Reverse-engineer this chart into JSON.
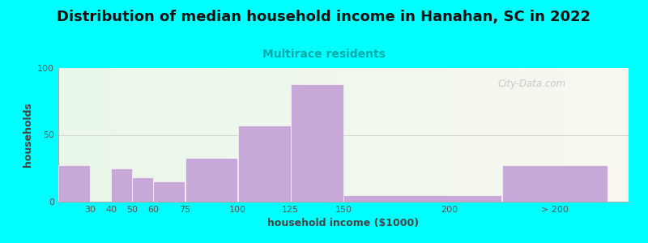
{
  "title": "Distribution of median household income in Hanahan, SC in 2022",
  "subtitle": "Multirace residents",
  "xlabel": "household income ($1000)",
  "ylabel": "households",
  "background_outer": "#00FFFF",
  "bar_color": "#C8A8D8",
  "values": [
    27,
    0,
    25,
    18,
    15,
    33,
    57,
    88,
    5,
    27
  ],
  "bar_lefts": [
    15,
    30,
    40,
    50,
    60,
    75,
    100,
    125,
    150,
    225
  ],
  "bar_widths": [
    15,
    10,
    10,
    10,
    15,
    25,
    25,
    25,
    75,
    50
  ],
  "xlim": [
    15,
    285
  ],
  "ylim": [
    0,
    100
  ],
  "yticks": [
    0,
    50,
    100
  ],
  "xtick_positions": [
    30,
    40,
    50,
    60,
    75,
    100,
    125,
    150,
    200,
    250
  ],
  "xtick_labels": [
    "30",
    "40",
    "50",
    "60",
    "75",
    "100",
    "125",
    "150",
    "200",
    "> 200"
  ],
  "watermark": "City-Data.com",
  "title_fontsize": 13,
  "subtitle_fontsize": 10,
  "axis_label_fontsize": 9
}
